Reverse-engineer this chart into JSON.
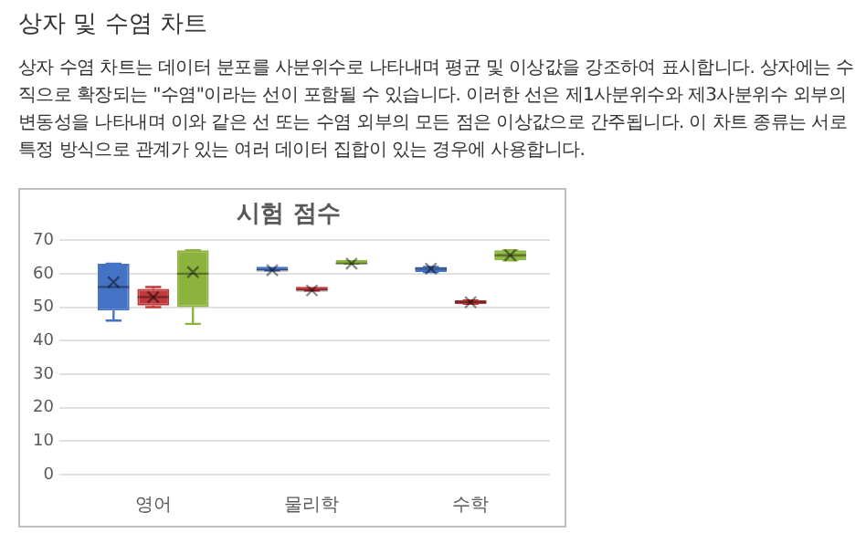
{
  "chart_data": {
    "type": "box",
    "title": "시험 점수",
    "annotations": [
      "상자 및 수염 차트",
      "상자 수염 차트는 데이터 분포를 사분위수로 나타내며 평균 및 이상값을 강조하여 표시합니다. 상자에는 수직으로 확장되는 \"수염\"이라는 선이 포함될 수 있습니다. 이러한 선은 제1사분위수와 제3사분위수 외부의 변동성을 나타내며 이와 같은 선 또는 수염 외부의 모든 점은 이상값으로 간주됩니다. 이 차트 종류는 서로 특정 방식으로 관계가 있는 여러 데이터 집합이 있는 경우에 사용합니다."
    ],
    "categories": [
      "영어",
      "물리학",
      "수학"
    ],
    "series": [
      {
        "color": "#4472c4",
        "boxes": [
          {
            "low": 46,
            "q1": 49,
            "median": 56,
            "q3": 63,
            "high": 63,
            "mean": 57.5
          },
          {
            "low": 61,
            "q1": 61,
            "median": 61,
            "q3": 61,
            "high": 61,
            "mean": 61
          },
          {
            "low": 60.5,
            "q1": 60.5,
            "median": 61.5,
            "q3": 62,
            "high": 62,
            "mean": 61.5
          }
        ]
      },
      {
        "color": "#c0393b",
        "boxes": [
          {
            "low": 50,
            "q1": 50.5,
            "median": 53,
            "q3": 55.5,
            "high": 56,
            "mean": 53
          },
          {
            "low": 55,
            "q1": 55,
            "median": 55,
            "q3": 55,
            "high": 55,
            "mean": 55
          },
          {
            "low": 51,
            "q1": 51,
            "median": 51.5,
            "q3": 52,
            "high": 52,
            "mean": 51.5
          }
        ]
      },
      {
        "color": "#8db33f",
        "boxes": [
          {
            "low": 45,
            "q1": 50,
            "median": 60,
            "q3": 67,
            "high": 67,
            "mean": 60.5
          },
          {
            "low": 63,
            "q1": 63,
            "median": 63,
            "q3": 63,
            "high": 63,
            "mean": 63
          },
          {
            "low": 64,
            "q1": 64,
            "median": 65.5,
            "q3": 67,
            "high": 67,
            "mean": 65.5
          }
        ]
      }
    ],
    "ylim": [
      0,
      70
    ],
    "yticks": [
      0,
      10,
      20,
      30,
      40,
      50,
      60,
      70
    ],
    "grid": "y",
    "marker": "cross"
  }
}
